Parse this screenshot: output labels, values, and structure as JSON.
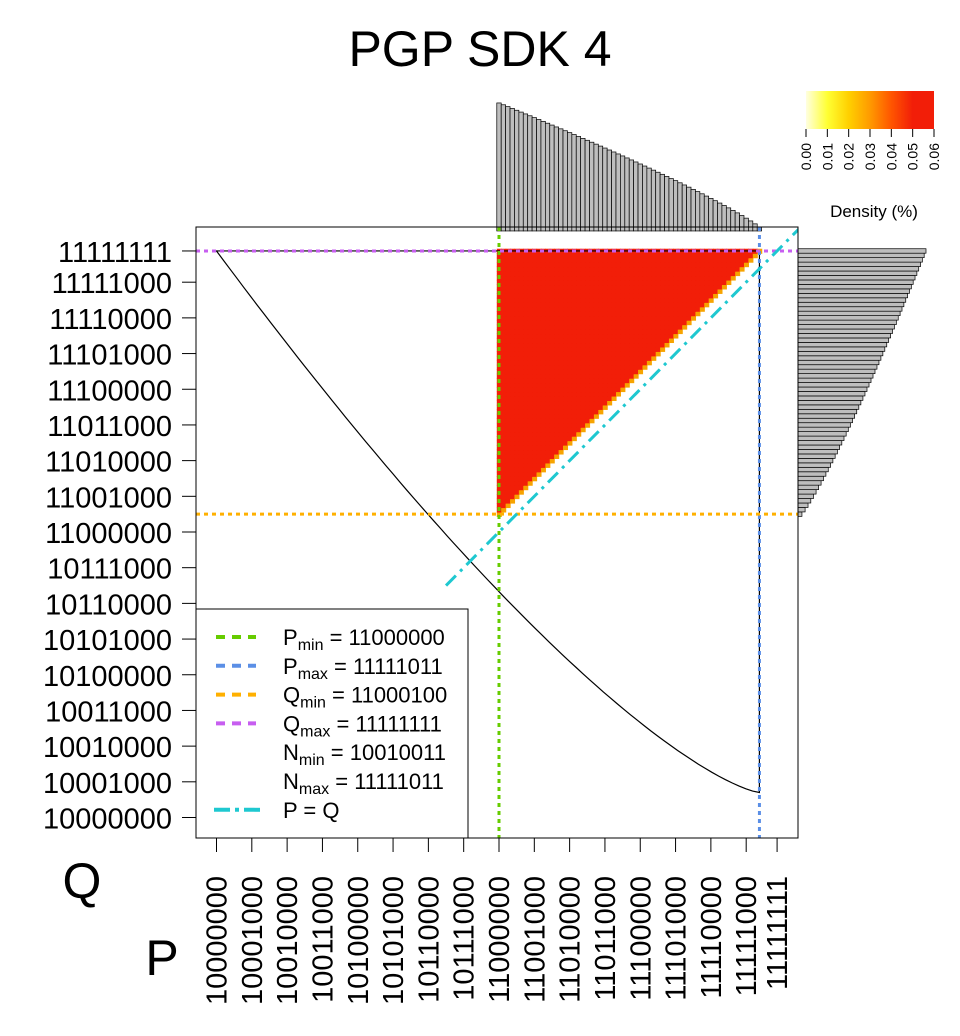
{
  "chart_data": {
    "type": "heatmap",
    "title": "PGP SDK 4",
    "xlabel": "P",
    "ylabel": "Q",
    "axis_domain": [
      128,
      256
    ],
    "x_ticks": [
      "10000000",
      "10001000",
      "10010000",
      "10011000",
      "10100000",
      "10101000",
      "10110000",
      "10111000",
      "11000000",
      "11001000",
      "11010000",
      "11011000",
      "11100000",
      "11101000",
      "11110000",
      "11111000",
      "11111111"
    ],
    "y_ticks": [
      "10000000",
      "10001000",
      "10010000",
      "10011000",
      "10100000",
      "10101000",
      "10110000",
      "10111000",
      "11000000",
      "11001000",
      "11010000",
      "11011000",
      "11100000",
      "11101000",
      "11110000",
      "11111000",
      "11111111"
    ],
    "heatmap": {
      "p_range": [
        192,
        251
      ],
      "q_range": [
        196,
        255
      ],
      "region": "Q >= P + 4",
      "fill_color": "#f21e08",
      "edge_color": "#f7a300"
    },
    "p_min": 192,
    "p_max": 251,
    "q_min": 196,
    "q_max": 255,
    "n_min": 147,
    "n_max": 251,
    "colorbar": {
      "label": "Density (%)",
      "ticks": [
        "0.00",
        "0.01",
        "0.02",
        "0.03",
        "0.04",
        "0.05",
        "0.06"
      ],
      "colors": [
        "#ffffe0",
        "#ffff33",
        "#ffd000",
        "#ff9a00",
        "#ff5500",
        "#f21e08",
        "#f21e08"
      ]
    },
    "legend": {
      "placement": "bottom-left",
      "items": [
        {
          "sym": "P",
          "sub": "min",
          "value": "= 11000000",
          "color": "#66cc00",
          "style": "dashed"
        },
        {
          "sym": "P",
          "sub": "max",
          "value": "= 11111011",
          "color": "#5b8fe6",
          "style": "dashed"
        },
        {
          "sym": "Q",
          "sub": "min",
          "value": "= 11000100",
          "color": "#ffb000",
          "style": "dashed"
        },
        {
          "sym": "Q",
          "sub": "max",
          "value": "= 11111111",
          "color": "#c75ef0",
          "style": "dashed"
        },
        {
          "sym": "N",
          "sub": "min",
          "value": "= 10010011",
          "color": "",
          "style": "none"
        },
        {
          "sym": "N",
          "sub": "max",
          "value": "= 11111011",
          "color": "",
          "style": "none"
        },
        {
          "sym": "P = Q",
          "sub": "",
          "value": "",
          "color": "#1ec8d0",
          "style": "dashdot"
        }
      ]
    }
  }
}
